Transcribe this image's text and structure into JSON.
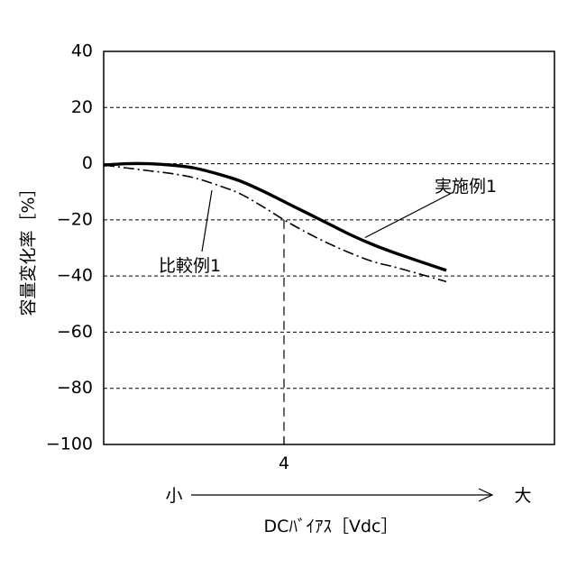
{
  "chart_data": {
    "type": "line",
    "ylabel": "容量変化率［%］",
    "xlabel": "DCﾊﾞｲｱｽ［Vdc］",
    "x_axis_small": "小",
    "x_axis_large": "大",
    "x_marker_label": "4",
    "x_marker_value": 4,
    "xlim": [
      0,
      10
    ],
    "ylim": [
      -100,
      40
    ],
    "yticks": [
      40,
      20,
      0,
      -20,
      -40,
      -60,
      -80,
      -100
    ],
    "ytick_labels": [
      "40",
      "20",
      "0",
      "−20",
      "−40",
      "−60",
      "−80",
      "−100"
    ],
    "grid": "horizontal dashed",
    "series": [
      {
        "name": "実施例1",
        "style": "solid-thick",
        "x": [
          0,
          0.5,
          1,
          1.5,
          2,
          2.5,
          3,
          3.5,
          4,
          4.5,
          5,
          5.5,
          6,
          6.5,
          7.6
        ],
        "y": [
          -0.5,
          0,
          0,
          -0.5,
          -1.5,
          -3.5,
          -6,
          -9.5,
          -13.5,
          -17.5,
          -21.5,
          -25.5,
          -29,
          -32,
          -38
        ]
      },
      {
        "name": "比較例1",
        "style": "dash-dot",
        "x": [
          0,
          0.5,
          1,
          1.5,
          2,
          2.5,
          3,
          3.5,
          4,
          4.5,
          5,
          5.5,
          6,
          6.5,
          7.6
        ],
        "y": [
          -0.5,
          -1.5,
          -2.5,
          -3.5,
          -5,
          -7.5,
          -10.5,
          -15,
          -20,
          -24.5,
          -28.5,
          -32,
          -35,
          -37,
          -42
        ]
      }
    ]
  }
}
